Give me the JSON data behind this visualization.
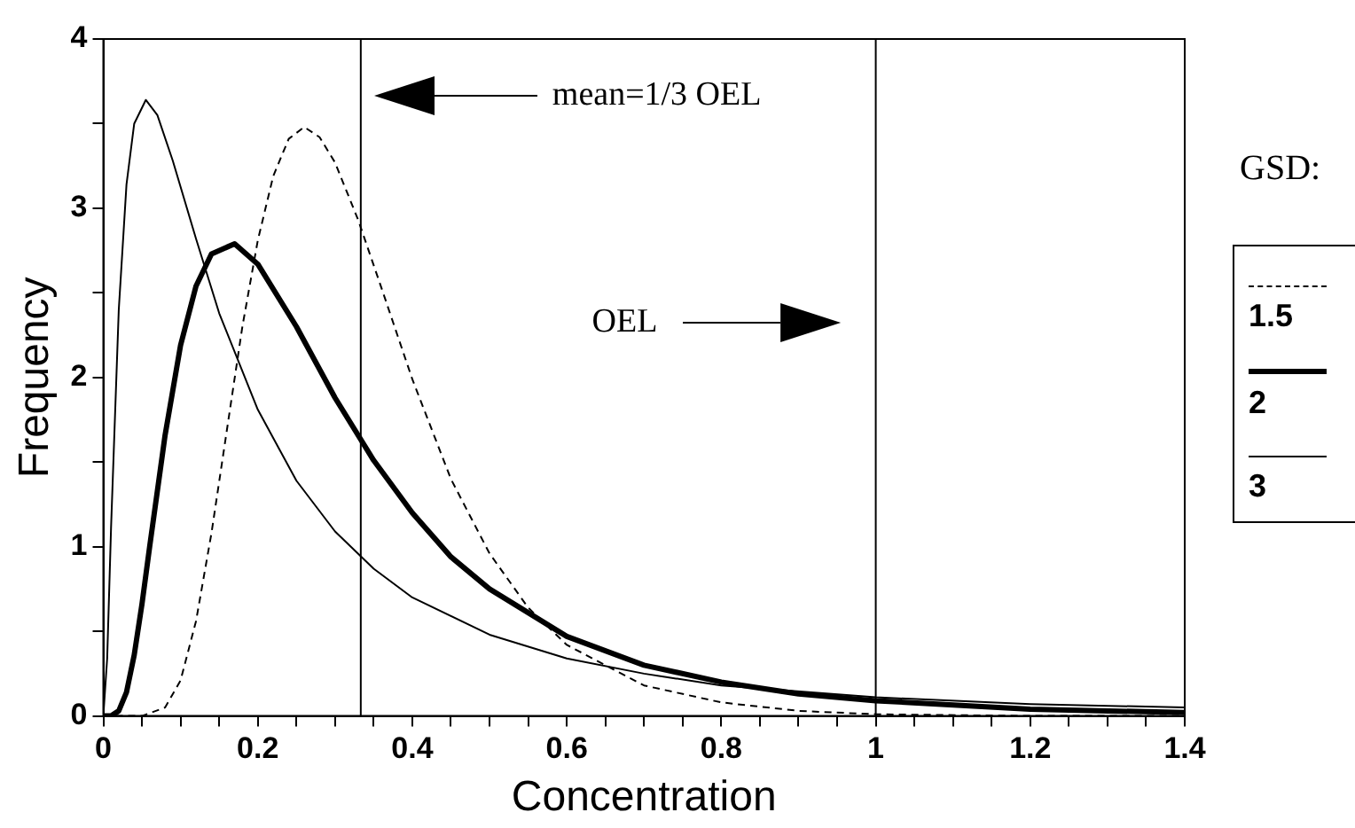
{
  "chart_data": {
    "type": "line",
    "xlabel": "Concentration",
    "ylabel": "Frequency",
    "legend_title": "GSD:",
    "legend": "right",
    "grid": false,
    "marker": "none",
    "xlim": [
      0,
      1.4
    ],
    "ylim": [
      0,
      4
    ],
    "xticks": [
      0,
      {
        "value": 0.05,
        "label": null
      },
      {
        "value": 0.1,
        "label": null
      },
      {
        "value": 0.15,
        "label": null
      },
      0.2,
      {
        "value": 0.25,
        "label": null
      },
      {
        "value": 0.3,
        "label": null
      },
      {
        "value": 0.35,
        "label": null
      },
      0.4,
      {
        "value": 0.45,
        "label": null
      },
      {
        "value": 0.5,
        "label": null
      },
      {
        "value": 0.55,
        "label": null
      },
      0.6,
      {
        "value": 0.65,
        "label": null
      },
      {
        "value": 0.7,
        "label": null
      },
      {
        "value": 0.75,
        "label": null
      },
      0.8,
      {
        "value": 0.85,
        "label": null
      },
      {
        "value": 0.9,
        "label": null
      },
      {
        "value": 0.95,
        "label": null
      },
      1,
      {
        "value": 1.05,
        "label": null
      },
      {
        "value": 1.1,
        "label": null
      },
      {
        "value": 1.15,
        "label": null
      },
      1.2,
      {
        "value": 1.25,
        "label": null
      },
      {
        "value": 1.3,
        "label": null
      },
      {
        "value": 1.35,
        "label": null
      },
      1.4
    ],
    "yticks": [
      0,
      {
        "value": 0.5,
        "label": null
      },
      1,
      {
        "value": 1.5,
        "label": null
      },
      2,
      {
        "value": 2.5,
        "label": null
      },
      3,
      {
        "value": 3.5,
        "label": null
      },
      4
    ],
    "ref_lines": [
      {
        "axis": "x",
        "value": 0.3333,
        "color": "#000000"
      },
      {
        "axis": "x",
        "value": 1,
        "color": "#000000"
      }
    ],
    "annotations": [
      "mean=1/3 OEL",
      "OEL"
    ],
    "series": [
      {
        "name": "1.5",
        "color": "#000000",
        "line_style": "dashed",
        "x": [
          0,
          0.05,
          0.08,
          0.1,
          0.12,
          0.14,
          0.16,
          0.18,
          0.2,
          0.22,
          0.24,
          0.26,
          0.28,
          0.3,
          0.33,
          0.36,
          0.4,
          0.45,
          0.5,
          0.55,
          0.6,
          0.7,
          0.8,
          0.9,
          1.0,
          1.2,
          1.4
        ],
        "values": [
          0,
          0,
          0.05,
          0.21,
          0.56,
          1.08,
          1.69,
          2.3,
          2.81,
          3.19,
          3.41,
          3.48,
          3.42,
          3.27,
          2.93,
          2.53,
          1.99,
          1.4,
          0.96,
          0.64,
          0.42,
          0.18,
          0.08,
          0.03,
          0.01,
          0,
          0
        ]
      },
      {
        "name": "2",
        "color": "#000000",
        "line_style": "solid",
        "x": [
          0,
          0.01,
          0.02,
          0.03,
          0.04,
          0.05,
          0.06,
          0.08,
          0.1,
          0.12,
          0.14,
          0.17,
          0.2,
          0.25,
          0.3,
          0.35,
          0.4,
          0.45,
          0.5,
          0.6,
          0.7,
          0.8,
          0.9,
          1.0,
          1.2,
          1.4
        ],
        "values": [
          0,
          0,
          0.03,
          0.14,
          0.36,
          0.66,
          1.0,
          1.66,
          2.19,
          2.54,
          2.73,
          2.79,
          2.67,
          2.3,
          1.88,
          1.51,
          1.2,
          0.94,
          0.75,
          0.47,
          0.3,
          0.2,
          0.13,
          0.09,
          0.04,
          0.02
        ]
      },
      {
        "name": "3",
        "color": "#000000",
        "line_style": "solid",
        "x": [
          0,
          0.005,
          0.01,
          0.02,
          0.03,
          0.04,
          0.055,
          0.07,
          0.09,
          0.12,
          0.15,
          0.2,
          0.25,
          0.3,
          0.35,
          0.4,
          0.5,
          0.6,
          0.7,
          0.8,
          1.0,
          1.2,
          1.4
        ],
        "values": [
          0,
          0.34,
          1.11,
          2.4,
          3.14,
          3.5,
          3.64,
          3.55,
          3.28,
          2.82,
          2.38,
          1.81,
          1.39,
          1.09,
          0.87,
          0.7,
          0.48,
          0.34,
          0.25,
          0.18,
          0.11,
          0.07,
          0.05
        ]
      }
    ]
  }
}
